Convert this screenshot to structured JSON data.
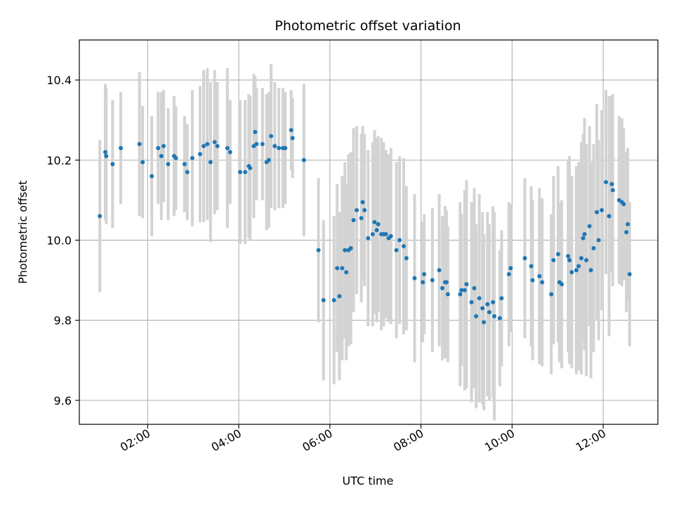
{
  "chart_data": {
    "type": "scatter",
    "title": "Photometric offset variation",
    "xlabel": "UTC time",
    "ylabel": "Photometric offset",
    "grid": true,
    "x_unit": "decimal hours UTC",
    "xlim": [
      0.5,
      13.2
    ],
    "ylim": [
      9.54,
      10.5
    ],
    "xticks": [
      2,
      4,
      6,
      8,
      10,
      12
    ],
    "xtick_labels": [
      "02:00",
      "04:00",
      "06:00",
      "08:00",
      "10:00",
      "12:00"
    ],
    "yticks": [
      9.6,
      9.8,
      10.0,
      10.2,
      10.4
    ],
    "ytick_labels": [
      "9.6",
      "9.8",
      "10.0",
      "10.2",
      "10.4"
    ],
    "marker_color": "#1f77b4",
    "errorbar_color": "#d3d3d3",
    "series": [
      {
        "name": "offset",
        "points": [
          [
            0.95,
            10.06,
            0.19
          ],
          [
            1.07,
            10.22,
            0.17
          ],
          [
            1.09,
            10.21,
            0.17
          ],
          [
            1.23,
            10.19,
            0.16
          ],
          [
            1.41,
            10.23,
            0.14
          ],
          [
            1.82,
            10.24,
            0.18
          ],
          [
            1.89,
            10.195,
            0.14
          ],
          [
            2.09,
            10.16,
            0.15
          ],
          [
            2.23,
            10.23,
            0.14
          ],
          [
            2.3,
            10.21,
            0.16
          ],
          [
            2.35,
            10.235,
            0.14
          ],
          [
            2.45,
            10.19,
            0.14
          ],
          [
            2.58,
            10.21,
            0.15
          ],
          [
            2.62,
            10.205,
            0.13
          ],
          [
            2.81,
            10.19,
            0.12
          ],
          [
            2.87,
            10.17,
            0.12
          ],
          [
            2.98,
            10.205,
            0.17
          ],
          [
            3.15,
            10.215,
            0.17
          ],
          [
            3.23,
            10.235,
            0.19
          ],
          [
            3.31,
            10.24,
            0.19
          ],
          [
            3.38,
            10.195,
            0.2
          ],
          [
            3.47,
            10.245,
            0.18
          ],
          [
            3.53,
            10.235,
            0.16
          ],
          [
            3.75,
            10.23,
            0.2
          ],
          [
            3.81,
            10.22,
            0.13
          ],
          [
            4.03,
            10.17,
            0.18
          ],
          [
            4.14,
            10.17,
            0.18
          ],
          [
            4.22,
            10.185,
            0.18
          ],
          [
            4.25,
            10.18,
            0.18
          ],
          [
            4.33,
            10.235,
            0.18
          ],
          [
            4.36,
            10.27,
            0.14
          ],
          [
            4.39,
            10.24,
            0.14
          ],
          [
            4.52,
            10.24,
            0.14
          ],
          [
            4.61,
            10.195,
            0.17
          ],
          [
            4.66,
            10.2,
            0.17
          ],
          [
            4.71,
            10.26,
            0.18
          ],
          [
            4.79,
            10.235,
            0.16
          ],
          [
            4.88,
            10.23,
            0.15
          ],
          [
            4.97,
            10.23,
            0.15
          ],
          [
            5.02,
            10.23,
            0.14
          ],
          [
            5.15,
            10.275,
            0.1
          ],
          [
            5.18,
            10.255,
            0.1
          ],
          [
            5.43,
            10.2,
            0.19
          ],
          [
            5.75,
            9.975,
            0.18
          ],
          [
            5.86,
            9.85,
            0.2
          ],
          [
            6.09,
            9.85,
            0.21
          ],
          [
            6.16,
            9.93,
            0.21
          ],
          [
            6.21,
            9.86,
            0.21
          ],
          [
            6.27,
            9.93,
            0.23
          ],
          [
            6.33,
            9.975,
            0.22
          ],
          [
            6.36,
            9.92,
            0.22
          ],
          [
            6.41,
            9.975,
            0.24
          ],
          [
            6.46,
            9.98,
            0.24
          ],
          [
            6.52,
            10.05,
            0.23
          ],
          [
            6.59,
            10.075,
            0.21
          ],
          [
            6.69,
            10.055,
            0.21
          ],
          [
            6.72,
            10.095,
            0.19
          ],
          [
            6.76,
            10.075,
            0.19
          ],
          [
            6.84,
            10.005,
            0.22
          ],
          [
            6.94,
            10.015,
            0.23
          ],
          [
            6.98,
            10.045,
            0.23
          ],
          [
            7.03,
            10.025,
            0.23
          ],
          [
            7.06,
            10.04,
            0.22
          ],
          [
            7.13,
            10.015,
            0.24
          ],
          [
            7.18,
            10.015,
            0.23
          ],
          [
            7.23,
            10.015,
            0.21
          ],
          [
            7.29,
            10.005,
            0.21
          ],
          [
            7.34,
            10.01,
            0.22
          ],
          [
            7.46,
            9.975,
            0.22
          ],
          [
            7.53,
            10.0,
            0.21
          ],
          [
            7.62,
            9.985,
            0.22
          ],
          [
            7.68,
            9.955,
            0.18
          ],
          [
            7.86,
            9.905,
            0.21
          ],
          [
            8.04,
            9.895,
            0.15
          ],
          [
            8.07,
            9.915,
            0.15
          ],
          [
            8.25,
            9.9,
            0.18
          ],
          [
            8.4,
            9.925,
            0.19
          ],
          [
            8.47,
            9.88,
            0.18
          ],
          [
            8.53,
            9.895,
            0.19
          ],
          [
            8.56,
            9.895,
            0.18
          ],
          [
            8.59,
            9.865,
            0.17
          ],
          [
            8.86,
            9.865,
            0.23
          ],
          [
            8.89,
            9.875,
            0.19
          ],
          [
            8.96,
            9.875,
            0.25
          ],
          [
            9.0,
            9.89,
            0.26
          ],
          [
            9.11,
            9.845,
            0.25
          ],
          [
            9.17,
            9.88,
            0.25
          ],
          [
            9.21,
            9.81,
            0.23
          ],
          [
            9.28,
            9.855,
            0.26
          ],
          [
            9.35,
            9.83,
            0.24
          ],
          [
            9.38,
            9.795,
            0.22
          ],
          [
            9.46,
            9.84,
            0.23
          ],
          [
            9.5,
            9.82,
            0.22
          ],
          [
            9.58,
            9.845,
            0.24
          ],
          [
            9.61,
            9.81,
            0.26
          ],
          [
            9.73,
            9.805,
            0.17
          ],
          [
            9.77,
            9.855,
            0.17
          ],
          [
            9.93,
            9.915,
            0.18
          ],
          [
            9.97,
            9.93,
            0.16
          ],
          [
            10.28,
            9.955,
            0.2
          ],
          [
            10.42,
            9.935,
            0.2
          ],
          [
            10.45,
            9.9,
            0.2
          ],
          [
            10.6,
            9.91,
            0.22
          ],
          [
            10.66,
            9.895,
            0.21
          ],
          [
            10.86,
            9.865,
            0.2
          ],
          [
            10.91,
            9.95,
            0.21
          ],
          [
            11.01,
            9.965,
            0.22
          ],
          [
            11.04,
            9.895,
            0.2
          ],
          [
            11.09,
            9.89,
            0.21
          ],
          [
            11.23,
            9.96,
            0.24
          ],
          [
            11.26,
            9.95,
            0.26
          ],
          [
            11.31,
            9.92,
            0.24
          ],
          [
            11.41,
            9.925,
            0.26
          ],
          [
            11.46,
            9.935,
            0.26
          ],
          [
            11.52,
            9.955,
            0.29
          ],
          [
            11.56,
            10.005,
            0.26
          ],
          [
            11.59,
            10.015,
            0.29
          ],
          [
            11.63,
            9.95,
            0.29
          ],
          [
            11.7,
            10.035,
            0.25
          ],
          [
            11.73,
            9.925,
            0.27
          ],
          [
            11.79,
            9.98,
            0.26
          ],
          [
            11.86,
            10.07,
            0.27
          ],
          [
            11.9,
            10.0,
            0.25
          ],
          [
            11.97,
            10.075,
            0.25
          ],
          [
            12.06,
            10.145,
            0.23
          ],
          [
            12.13,
            10.06,
            0.3
          ],
          [
            12.19,
            10.14,
            0.22
          ],
          [
            12.21,
            10.125,
            0.24
          ],
          [
            12.35,
            10.1,
            0.21
          ],
          [
            12.41,
            10.095,
            0.21
          ],
          [
            12.45,
            10.09,
            0.19
          ],
          [
            12.51,
            10.02,
            0.2
          ],
          [
            12.54,
            10.04,
            0.19
          ],
          [
            12.58,
            9.915,
            0.18
          ]
        ]
      }
    ]
  }
}
